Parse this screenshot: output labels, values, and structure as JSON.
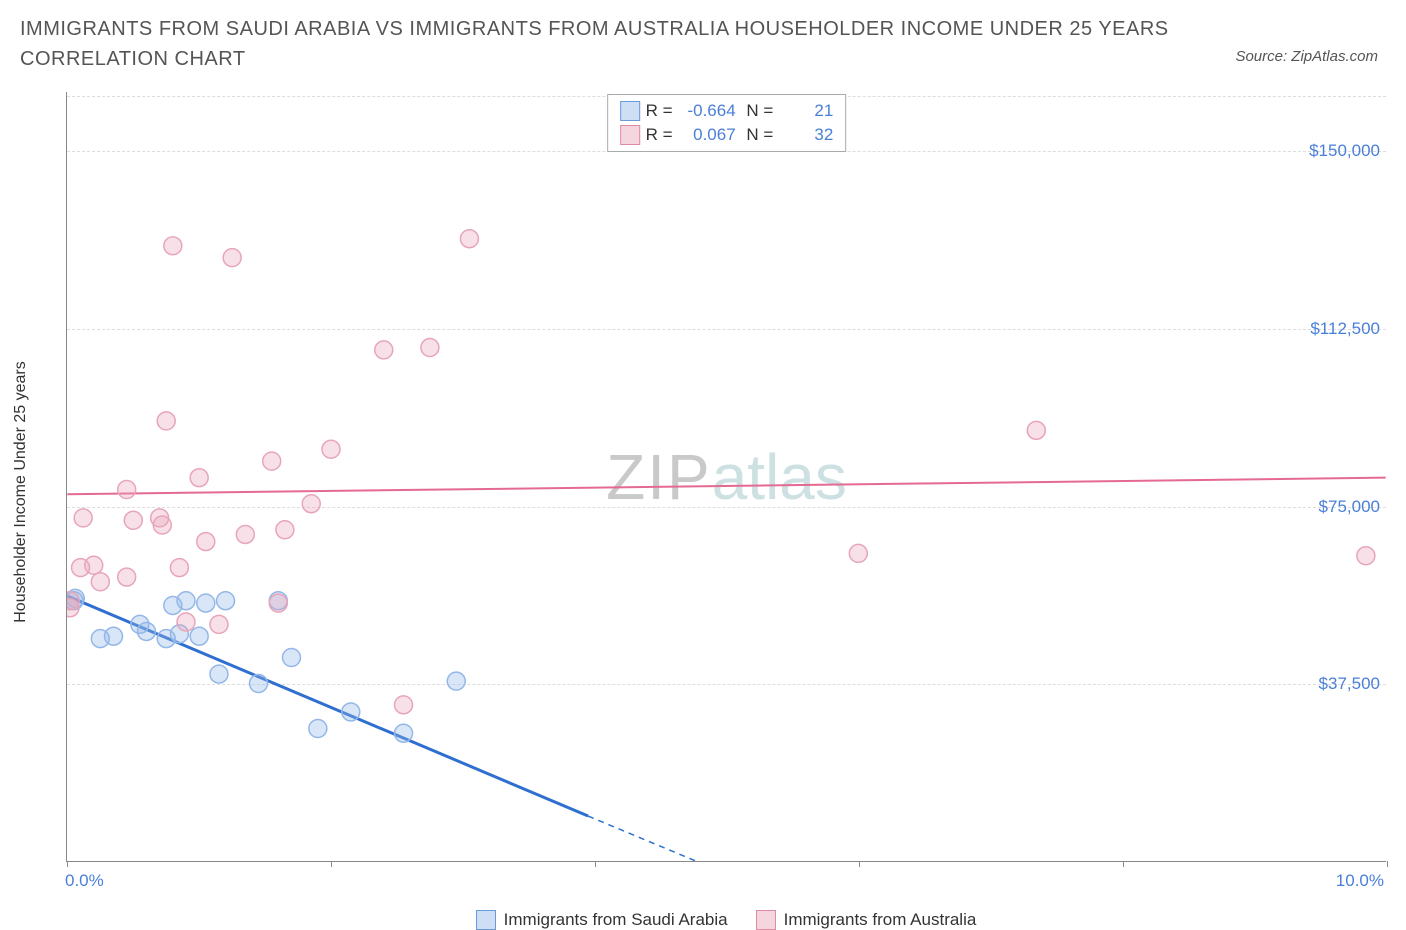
{
  "title": "IMMIGRANTS FROM SAUDI ARABIA VS IMMIGRANTS FROM AUSTRALIA HOUSEHOLDER INCOME UNDER 25 YEARS CORRELATION CHART",
  "source": "Source: ZipAtlas.com",
  "watermark": {
    "part1": "ZIP",
    "part2": "atlas"
  },
  "chart": {
    "type": "scatter",
    "background_color": "#ffffff",
    "grid_color": "#dddddd",
    "axis_color": "#888888",
    "title_color": "#555555",
    "tick_label_color": "#4a7fd8",
    "axis_label_color": "#333333",
    "ylabel": "Householder Income Under 25 years",
    "xaxis": {
      "min": 0.0,
      "max": 10.0,
      "ticks": [
        0.0,
        2.0,
        4.0,
        6.0,
        8.0,
        10.0
      ],
      "tick_labels_shown": [
        "0.0%",
        "10.0%"
      ]
    },
    "yaxis": {
      "min": 0,
      "max": 162500,
      "ticks": [
        37500,
        75000,
        112500,
        150000
      ],
      "tick_labels": [
        "$37,500",
        "$75,000",
        "$112,500",
        "$150,000"
      ]
    },
    "series": [
      {
        "name": "Immigrants from Saudi Arabia",
        "marker_color": "#93b7e8",
        "marker_fill": "rgba(147,183,232,0.35)",
        "line_color": "#2f6fd0",
        "line_width": 3,
        "marker_radius": 9,
        "r": -0.664,
        "n": 21,
        "trend": {
          "x1": 0.0,
          "y1": 56000,
          "x2": 3.95,
          "y2": 9500,
          "solid_until_x": 3.95,
          "extend_to_x": 6.4,
          "y_extend": -19000
        },
        "points": [
          {
            "x": 0.05,
            "y": 55000
          },
          {
            "x": 0.06,
            "y": 55500
          },
          {
            "x": 0.25,
            "y": 47000
          },
          {
            "x": 0.35,
            "y": 47500
          },
          {
            "x": 0.55,
            "y": 50000
          },
          {
            "x": 0.6,
            "y": 48500
          },
          {
            "x": 0.75,
            "y": 47000
          },
          {
            "x": 0.8,
            "y": 54000
          },
          {
            "x": 0.85,
            "y": 48000
          },
          {
            "x": 0.9,
            "y": 55000
          },
          {
            "x": 1.0,
            "y": 47500
          },
          {
            "x": 1.05,
            "y": 54500
          },
          {
            "x": 1.2,
            "y": 55000
          },
          {
            "x": 1.15,
            "y": 39500
          },
          {
            "x": 1.45,
            "y": 37500
          },
          {
            "x": 1.6,
            "y": 55000
          },
          {
            "x": 1.7,
            "y": 43000
          },
          {
            "x": 1.9,
            "y": 28000
          },
          {
            "x": 2.15,
            "y": 31500
          },
          {
            "x": 2.55,
            "y": 27000
          },
          {
            "x": 2.95,
            "y": 38000
          }
        ]
      },
      {
        "name": "Immigrants from Australia",
        "marker_color": "#e8a5b9",
        "marker_fill": "rgba(232,165,185,0.35)",
        "line_color": "#e46a92",
        "line_width": 2,
        "marker_radius": 9,
        "r": 0.067,
        "n": 32,
        "trend": {
          "x1": 0.0,
          "y1": 77500,
          "x2": 10.0,
          "y2": 81000
        },
        "points": [
          {
            "x": 0.02,
            "y": 53500
          },
          {
            "x": 0.02,
            "y": 55000
          },
          {
            "x": 0.1,
            "y": 62000
          },
          {
            "x": 0.12,
            "y": 72500
          },
          {
            "x": 0.2,
            "y": 62500
          },
          {
            "x": 0.25,
            "y": 59000
          },
          {
            "x": 0.45,
            "y": 78500
          },
          {
            "x": 0.5,
            "y": 72000
          },
          {
            "x": 0.7,
            "y": 72500
          },
          {
            "x": 0.72,
            "y": 71000
          },
          {
            "x": 0.75,
            "y": 93000
          },
          {
            "x": 0.8,
            "y": 130000
          },
          {
            "x": 0.85,
            "y": 62000
          },
          {
            "x": 0.9,
            "y": 50500
          },
          {
            "x": 1.0,
            "y": 81000
          },
          {
            "x": 1.05,
            "y": 67500
          },
          {
            "x": 1.15,
            "y": 50000
          },
          {
            "x": 1.25,
            "y": 127500
          },
          {
            "x": 1.35,
            "y": 69000
          },
          {
            "x": 1.55,
            "y": 84500
          },
          {
            "x": 1.6,
            "y": 54500
          },
          {
            "x": 1.65,
            "y": 70000
          },
          {
            "x": 1.85,
            "y": 75500
          },
          {
            "x": 2.0,
            "y": 87000
          },
          {
            "x": 2.4,
            "y": 108000
          },
          {
            "x": 2.55,
            "y": 33000
          },
          {
            "x": 2.75,
            "y": 108500
          },
          {
            "x": 3.05,
            "y": 131500
          },
          {
            "x": 6.0,
            "y": 65000
          },
          {
            "x": 7.35,
            "y": 91000
          },
          {
            "x": 9.85,
            "y": 64500
          },
          {
            "x": 0.45,
            "y": 60000
          }
        ]
      }
    ],
    "legend_bottom": [
      {
        "label": "Immigrants from Saudi Arabia",
        "sw_border": "#6a9bd8",
        "sw_fill": "rgba(147,183,232,0.45)"
      },
      {
        "label": "Immigrants from Australia",
        "sw_border": "#e08aa4",
        "sw_fill": "rgba(232,165,185,0.45)"
      }
    ]
  }
}
